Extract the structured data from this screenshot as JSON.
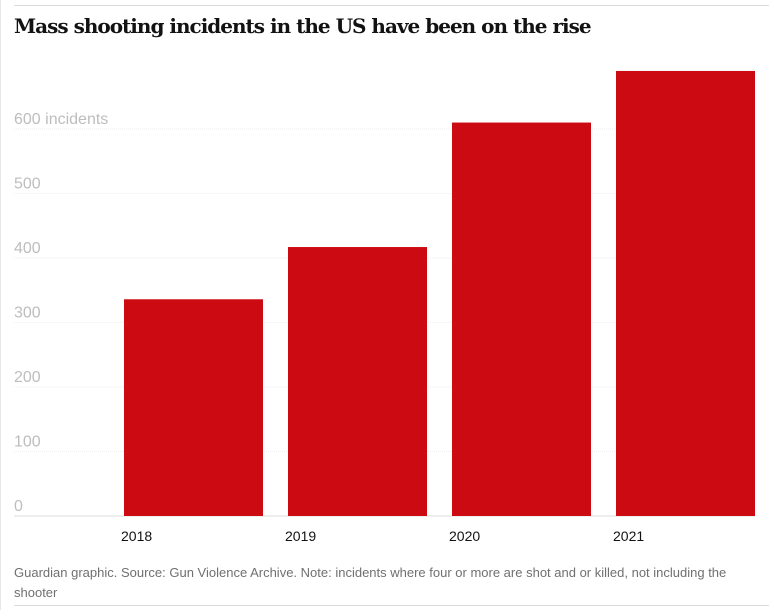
{
  "chart_data": {
    "type": "bar",
    "title": "Mass shooting incidents in the US have been on the rise",
    "categories": [
      "2018",
      "2019",
      "2020",
      "2021"
    ],
    "values": [
      336,
      417,
      610,
      690
    ],
    "ylabel": "incidents",
    "ylim": [
      0,
      700
    ],
    "yticks": [
      0,
      100,
      200,
      300,
      400,
      500,
      600
    ],
    "ytick_labels": [
      "0",
      "100",
      "200",
      "300",
      "400",
      "500",
      "600 incidents"
    ],
    "grid": true,
    "bar_color": "#cc0a11",
    "footer": "Guardian graphic. Source: Gun Violence Archive. Note: incidents where four or more are shot and or killed, not including the shooter"
  }
}
